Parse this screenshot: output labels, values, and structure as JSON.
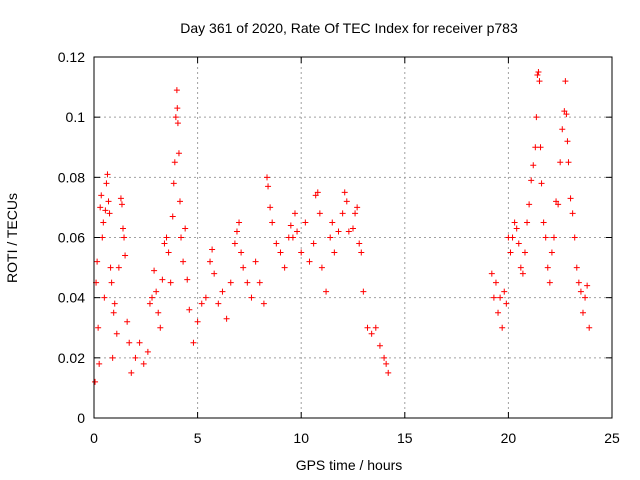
{
  "chart_data": {
    "type": "scatter",
    "title": "Day 361 of 2020, Rate Of TEC Index for receiver p783",
    "xlabel": "GPS time / hours",
    "ylabel": "ROTI / TECUs",
    "xlim": [
      0,
      25
    ],
    "ylim": [
      0,
      0.12
    ],
    "xticks": [
      0,
      5,
      10,
      15,
      20,
      25
    ],
    "yticks": [
      0,
      0.02,
      0.04,
      0.06,
      0.08,
      0.1,
      0.12
    ],
    "xtick_labels": [
      "0",
      "5",
      "10",
      "15",
      "20",
      "25"
    ],
    "ytick_labels": [
      "0",
      "0.02",
      "0.04",
      "0.06",
      "0.08",
      "0.1",
      "0.12"
    ],
    "grid": true,
    "marker": "+",
    "color": "#ff0000",
    "series": [
      {
        "points": [
          [
            0.05,
            0.012
          ],
          [
            0.1,
            0.045
          ],
          [
            0.15,
            0.052
          ],
          [
            0.2,
            0.03
          ],
          [
            0.25,
            0.018
          ],
          [
            0.3,
            0.07
          ],
          [
            0.35,
            0.074
          ],
          [
            0.4,
            0.06
          ],
          [
            0.45,
            0.065
          ],
          [
            0.5,
            0.04
          ],
          [
            0.55,
            0.069
          ],
          [
            0.6,
            0.078
          ],
          [
            0.65,
            0.081
          ],
          [
            0.7,
            0.072
          ],
          [
            0.75,
            0.068
          ],
          [
            0.8,
            0.05
          ],
          [
            0.85,
            0.045
          ],
          [
            0.9,
            0.02
          ],
          [
            0.95,
            0.035
          ],
          [
            1.0,
            0.038
          ],
          [
            1.1,
            0.028
          ],
          [
            1.2,
            0.05
          ],
          [
            1.3,
            0.073
          ],
          [
            1.35,
            0.071
          ],
          [
            1.4,
            0.063
          ],
          [
            1.45,
            0.06
          ],
          [
            1.5,
            0.054
          ],
          [
            1.6,
            0.032
          ],
          [
            1.7,
            0.025
          ],
          [
            1.8,
            0.015
          ],
          [
            2.0,
            0.02
          ],
          [
            2.2,
            0.025
          ],
          [
            2.4,
            0.018
          ],
          [
            2.6,
            0.022
          ],
          [
            2.7,
            0.038
          ],
          [
            2.8,
            0.04
          ],
          [
            2.9,
            0.049
          ],
          [
            3.0,
            0.042
          ],
          [
            3.1,
            0.035
          ],
          [
            3.2,
            0.03
          ],
          [
            3.3,
            0.046
          ],
          [
            3.4,
            0.058
          ],
          [
            3.5,
            0.06
          ],
          [
            3.6,
            0.055
          ],
          [
            3.7,
            0.045
          ],
          [
            3.8,
            0.067
          ],
          [
            3.85,
            0.078
          ],
          [
            3.9,
            0.085
          ],
          [
            3.95,
            0.1
          ],
          [
            4.0,
            0.109
          ],
          [
            4.02,
            0.103
          ],
          [
            4.05,
            0.098
          ],
          [
            4.1,
            0.088
          ],
          [
            4.15,
            0.072
          ],
          [
            4.2,
            0.06
          ],
          [
            4.3,
            0.052
          ],
          [
            4.4,
            0.063
          ],
          [
            4.5,
            0.046
          ],
          [
            4.6,
            0.036
          ],
          [
            4.8,
            0.025
          ],
          [
            5.0,
            0.032
          ],
          [
            5.2,
            0.038
          ],
          [
            5.4,
            0.04
          ],
          [
            5.6,
            0.052
          ],
          [
            5.7,
            0.056
          ],
          [
            5.8,
            0.048
          ],
          [
            6.0,
            0.038
          ],
          [
            6.2,
            0.042
          ],
          [
            6.4,
            0.033
          ],
          [
            6.6,
            0.045
          ],
          [
            6.8,
            0.058
          ],
          [
            6.9,
            0.062
          ],
          [
            7.0,
            0.065
          ],
          [
            7.1,
            0.055
          ],
          [
            7.2,
            0.05
          ],
          [
            7.4,
            0.045
          ],
          [
            7.6,
            0.04
          ],
          [
            7.8,
            0.052
          ],
          [
            8.0,
            0.045
          ],
          [
            8.2,
            0.038
          ],
          [
            8.35,
            0.08
          ],
          [
            8.4,
            0.077
          ],
          [
            8.5,
            0.07
          ],
          [
            8.6,
            0.065
          ],
          [
            8.8,
            0.058
          ],
          [
            9.0,
            0.055
          ],
          [
            9.2,
            0.05
          ],
          [
            9.4,
            0.06
          ],
          [
            9.5,
            0.064
          ],
          [
            9.6,
            0.06
          ],
          [
            9.7,
            0.068
          ],
          [
            9.8,
            0.062
          ],
          [
            10.0,
            0.055
          ],
          [
            10.2,
            0.065
          ],
          [
            10.4,
            0.052
          ],
          [
            10.6,
            0.058
          ],
          [
            10.7,
            0.074
          ],
          [
            10.8,
            0.075
          ],
          [
            10.9,
            0.068
          ],
          [
            11.0,
            0.05
          ],
          [
            11.2,
            0.042
          ],
          [
            11.4,
            0.06
          ],
          [
            11.5,
            0.065
          ],
          [
            11.6,
            0.055
          ],
          [
            11.8,
            0.062
          ],
          [
            12.0,
            0.068
          ],
          [
            12.1,
            0.075
          ],
          [
            12.2,
            0.072
          ],
          [
            12.3,
            0.062
          ],
          [
            12.5,
            0.063
          ],
          [
            12.6,
            0.068
          ],
          [
            12.7,
            0.07
          ],
          [
            12.8,
            0.058
          ],
          [
            12.9,
            0.055
          ],
          [
            13.0,
            0.042
          ],
          [
            13.2,
            0.03
          ],
          [
            13.4,
            0.028
          ],
          [
            13.6,
            0.03
          ],
          [
            13.8,
            0.024
          ],
          [
            14.0,
            0.02
          ],
          [
            14.1,
            0.018
          ],
          [
            14.2,
            0.015
          ],
          [
            19.2,
            0.048
          ],
          [
            19.3,
            0.04
          ],
          [
            19.4,
            0.045
          ],
          [
            19.5,
            0.035
          ],
          [
            19.6,
            0.04
          ],
          [
            19.7,
            0.03
          ],
          [
            19.8,
            0.042
          ],
          [
            19.9,
            0.038
          ],
          [
            20.0,
            0.06
          ],
          [
            20.1,
            0.055
          ],
          [
            20.2,
            0.06
          ],
          [
            20.3,
            0.065
          ],
          [
            20.4,
            0.063
          ],
          [
            20.5,
            0.058
          ],
          [
            20.6,
            0.05
          ],
          [
            20.7,
            0.048
          ],
          [
            20.8,
            0.055
          ],
          [
            20.9,
            0.065
          ],
          [
            21.0,
            0.071
          ],
          [
            21.1,
            0.079
          ],
          [
            21.2,
            0.084
          ],
          [
            21.3,
            0.09
          ],
          [
            21.35,
            0.1
          ],
          [
            21.4,
            0.114
          ],
          [
            21.45,
            0.115
          ],
          [
            21.5,
            0.112
          ],
          [
            21.55,
            0.09
          ],
          [
            21.6,
            0.078
          ],
          [
            21.7,
            0.065
          ],
          [
            21.8,
            0.06
          ],
          [
            21.9,
            0.05
          ],
          [
            22.0,
            0.045
          ],
          [
            22.1,
            0.055
          ],
          [
            22.2,
            0.06
          ],
          [
            22.3,
            0.072
          ],
          [
            22.4,
            0.071
          ],
          [
            22.5,
            0.085
          ],
          [
            22.6,
            0.096
          ],
          [
            22.7,
            0.102
          ],
          [
            22.75,
            0.112
          ],
          [
            22.8,
            0.101
          ],
          [
            22.85,
            0.092
          ],
          [
            22.9,
            0.085
          ],
          [
            23.0,
            0.073
          ],
          [
            23.1,
            0.068
          ],
          [
            23.2,
            0.06
          ],
          [
            23.3,
            0.05
          ],
          [
            23.4,
            0.045
          ],
          [
            23.5,
            0.042
          ],
          [
            23.6,
            0.035
          ],
          [
            23.7,
            0.04
          ],
          [
            23.8,
            0.044
          ],
          [
            23.9,
            0.03
          ]
        ]
      }
    ]
  }
}
